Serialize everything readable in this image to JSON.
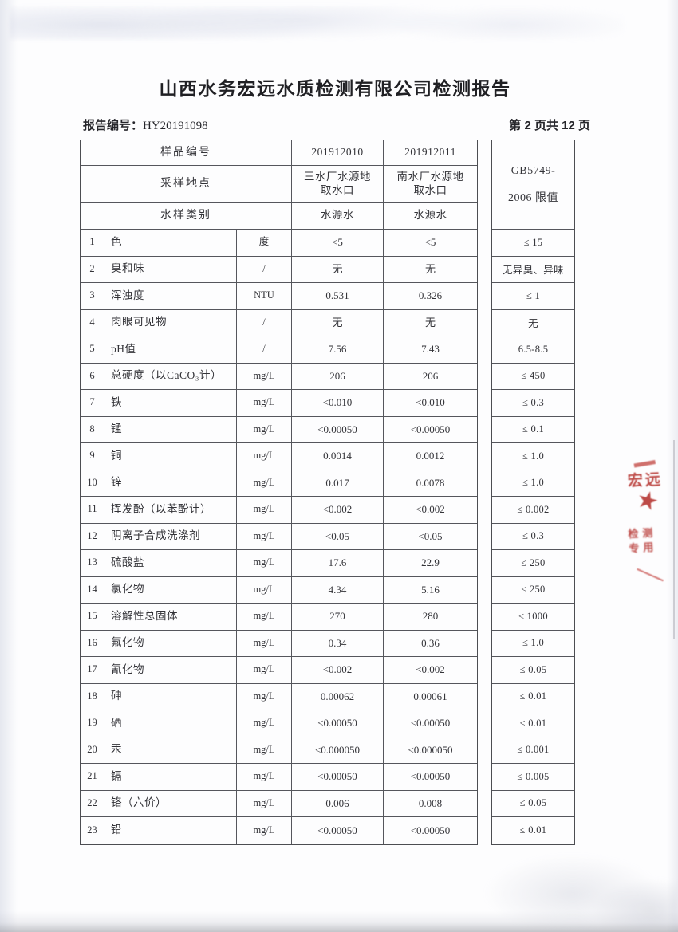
{
  "page": {
    "title": "山西水务宏远水质检测有限公司检测报告",
    "report_no_label": "报告编号：",
    "report_no": "HY20191098",
    "page_info": "第 2 页共 12 页"
  },
  "table": {
    "header": {
      "sample_id_label": "样品编号",
      "sample_ids": [
        "201912010",
        "201912011"
      ],
      "location_label": "采样地点",
      "locations": [
        "三水厂水源地取水口",
        "南水厂水源地取水口"
      ],
      "category_label": "水样类别",
      "categories": [
        "水源水",
        "水源水"
      ],
      "limit_header_line1": "GB5749-",
      "limit_header_line2": "2006 限值"
    },
    "rows": [
      {
        "no": "1",
        "name": "色",
        "unit": "度",
        "values": [
          "<5",
          "<5"
        ],
        "limit": "≤ 15"
      },
      {
        "no": "2",
        "name": "臭和味",
        "unit": "/",
        "values": [
          "无",
          "无"
        ],
        "limit": "无异臭、异味"
      },
      {
        "no": "3",
        "name": "浑浊度",
        "unit": "NTU",
        "values": [
          "0.531",
          "0.326"
        ],
        "limit": "≤ 1"
      },
      {
        "no": "4",
        "name": "肉眼可见物",
        "unit": "/",
        "values": [
          "无",
          "无"
        ],
        "limit": "无"
      },
      {
        "no": "5",
        "name": "pH值",
        "unit": "/",
        "values": [
          "7.56",
          "7.43"
        ],
        "limit": "6.5-8.5"
      },
      {
        "no": "6",
        "name": "总硬度（以CaCO₃计）",
        "unit": "mg/L",
        "values": [
          "206",
          "206"
        ],
        "limit": "≤ 450"
      },
      {
        "no": "7",
        "name": "铁",
        "unit": "mg/L",
        "values": [
          "<0.010",
          "<0.010"
        ],
        "limit": "≤ 0.3"
      },
      {
        "no": "8",
        "name": "锰",
        "unit": "mg/L",
        "values": [
          "<0.00050",
          "<0.00050"
        ],
        "limit": "≤ 0.1"
      },
      {
        "no": "9",
        "name": "铜",
        "unit": "mg/L",
        "values": [
          "0.0014",
          "0.0012"
        ],
        "limit": "≤ 1.0"
      },
      {
        "no": "10",
        "name": "锌",
        "unit": "mg/L",
        "values": [
          "0.017",
          "0.0078"
        ],
        "limit": "≤ 1.0"
      },
      {
        "no": "11",
        "name": "挥发酚（以苯酚计）",
        "unit": "mg/L",
        "values": [
          "<0.002",
          "<0.002"
        ],
        "limit": "≤ 0.002"
      },
      {
        "no": "12",
        "name": "阴离子合成洗涤剂",
        "unit": "mg/L",
        "values": [
          "<0.05",
          "<0.05"
        ],
        "limit": "≤ 0.3"
      },
      {
        "no": "13",
        "name": "硫酸盐",
        "unit": "mg/L",
        "values": [
          "17.6",
          "22.9"
        ],
        "limit": "≤ 250"
      },
      {
        "no": "14",
        "name": "氯化物",
        "unit": "mg/L",
        "values": [
          "4.34",
          "5.16"
        ],
        "limit": "≤ 250"
      },
      {
        "no": "15",
        "name": "溶解性总固体",
        "unit": "mg/L",
        "values": [
          "270",
          "280"
        ],
        "limit": "≤ 1000"
      },
      {
        "no": "16",
        "name": "氟化物",
        "unit": "mg/L",
        "values": [
          "0.34",
          "0.36"
        ],
        "limit": "≤ 1.0"
      },
      {
        "no": "17",
        "name": "氰化物",
        "unit": "mg/L",
        "values": [
          "<0.002",
          "<0.002"
        ],
        "limit": "≤ 0.05"
      },
      {
        "no": "18",
        "name": "砷",
        "unit": "mg/L",
        "values": [
          "0.00062",
          "0.00061"
        ],
        "limit": "≤ 0.01"
      },
      {
        "no": "19",
        "name": "硒",
        "unit": "mg/L",
        "values": [
          "<0.00050",
          "<0.00050"
        ],
        "limit": "≤ 0.01"
      },
      {
        "no": "20",
        "name": "汞",
        "unit": "mg/L",
        "values": [
          "<0.000050",
          "<0.000050"
        ],
        "limit": "≤ 0.001"
      },
      {
        "no": "21",
        "name": "镉",
        "unit": "mg/L",
        "values": [
          "<0.00050",
          "<0.00050"
        ],
        "limit": "≤ 0.005"
      },
      {
        "no": "22",
        "name": "铬（六价）",
        "unit": "mg/L",
        "values": [
          "0.006",
          "0.008"
        ],
        "limit": "≤ 0.05"
      },
      {
        "no": "23",
        "name": "铅",
        "unit": "mg/L",
        "values": [
          "<0.00050",
          "<0.00050"
        ],
        "limit": "≤ 0.01"
      }
    ]
  },
  "stamp": {
    "top_text": "宏远",
    "star_glyph": "★",
    "small_text": "检测专用",
    "color": "#b5322e"
  }
}
